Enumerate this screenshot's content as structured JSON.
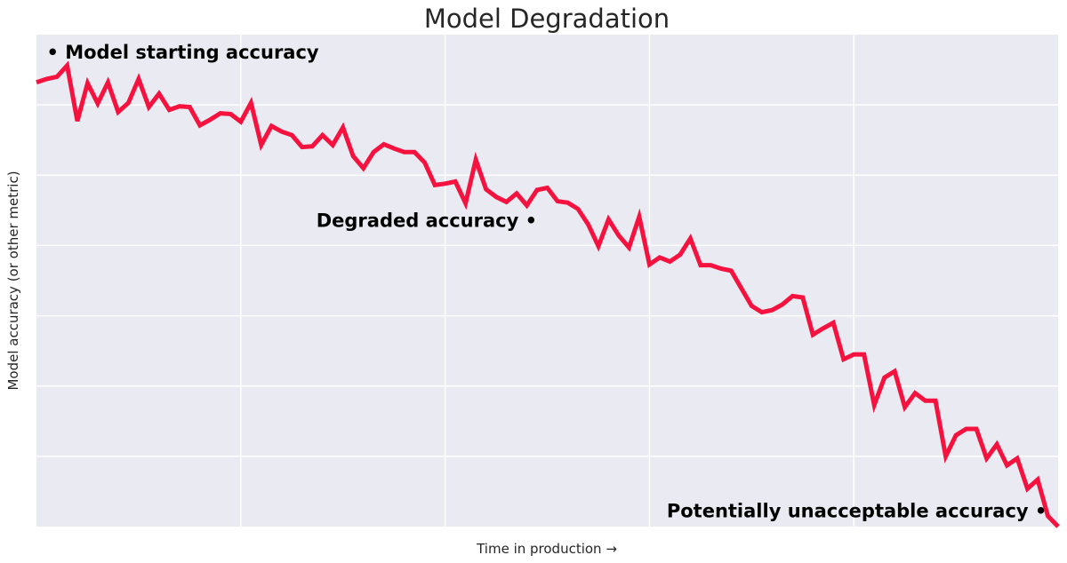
{
  "chart_data": {
    "type": "line",
    "title": "Model Degradation",
    "xlabel": "Time in production →",
    "ylabel": "Model accuracy (or other metric)",
    "xlim": [
      0,
      100
    ],
    "ylim": [
      0,
      7
    ],
    "grid": true,
    "x_ticks": [
      20,
      40,
      60,
      80
    ],
    "y_ticks": [
      1,
      2,
      3,
      4,
      5,
      6
    ],
    "x_tick_labels": [],
    "y_tick_labels": [],
    "style": {
      "background": "#eaeaf2",
      "line_color": "#f5123f"
    },
    "series": [
      {
        "x": [
          0,
          1,
          2,
          3,
          4,
          5,
          6,
          7,
          8,
          9,
          10,
          11,
          12,
          13,
          14,
          15,
          16,
          17,
          18,
          19,
          20,
          21,
          22,
          23,
          24,
          25,
          26,
          27,
          28,
          29,
          30,
          31,
          32,
          33,
          34,
          35,
          36,
          37,
          38,
          39,
          40,
          41,
          42,
          43,
          44,
          45,
          46,
          47,
          48,
          49,
          50,
          51,
          52,
          53,
          54,
          55,
          56,
          57,
          58,
          59,
          60,
          61,
          62,
          63,
          64,
          65,
          66,
          67,
          68,
          69,
          70,
          71,
          72,
          73,
          74,
          75,
          76,
          77,
          78,
          79,
          80,
          81,
          82,
          83,
          84,
          85,
          86,
          87,
          88,
          89,
          90,
          91,
          92,
          93,
          94,
          95,
          96,
          97,
          98,
          99,
          100
        ],
        "y": [
          6.32,
          6.37,
          6.4,
          6.56,
          5.77,
          6.31,
          6.02,
          6.32,
          5.9,
          6.03,
          6.37,
          5.97,
          6.16,
          5.93,
          5.98,
          5.97,
          5.71,
          5.79,
          5.88,
          5.87,
          5.76,
          6.03,
          5.43,
          5.7,
          5.62,
          5.57,
          5.4,
          5.41,
          5.57,
          5.43,
          5.68,
          5.27,
          5.1,
          5.33,
          5.44,
          5.38,
          5.33,
          5.33,
          5.18,
          4.86,
          4.88,
          4.91,
          4.6,
          5.22,
          4.8,
          4.69,
          4.62,
          4.74,
          4.57,
          4.79,
          4.82,
          4.63,
          4.61,
          4.52,
          4.3,
          3.99,
          4.37,
          4.14,
          3.97,
          4.41,
          3.73,
          3.83,
          3.77,
          3.87,
          4.1,
          3.72,
          3.72,
          3.67,
          3.64,
          3.39,
          3.14,
          3.05,
          3.08,
          3.16,
          3.28,
          3.26,
          2.73,
          2.82,
          2.9,
          2.38,
          2.45,
          2.45,
          1.73,
          2.12,
          2.21,
          1.7,
          1.9,
          1.79,
          1.79,
          1.0,
          1.3,
          1.39,
          1.39,
          0.97,
          1.17,
          0.87,
          0.97,
          0.54,
          0.67,
          0.15,
          0.0
        ]
      }
    ],
    "annotations": [
      {
        "text": "• Model starting accuracy",
        "x": 1,
        "y": 6.75,
        "anchor": "start"
      },
      {
        "text": "Degraded accuracy •",
        "x": 49,
        "y": 4.35,
        "anchor": "end"
      },
      {
        "text": "Potentially unacceptable accuracy •",
        "x": 98.9,
        "y": 0.22,
        "anchor": "end"
      }
    ]
  }
}
